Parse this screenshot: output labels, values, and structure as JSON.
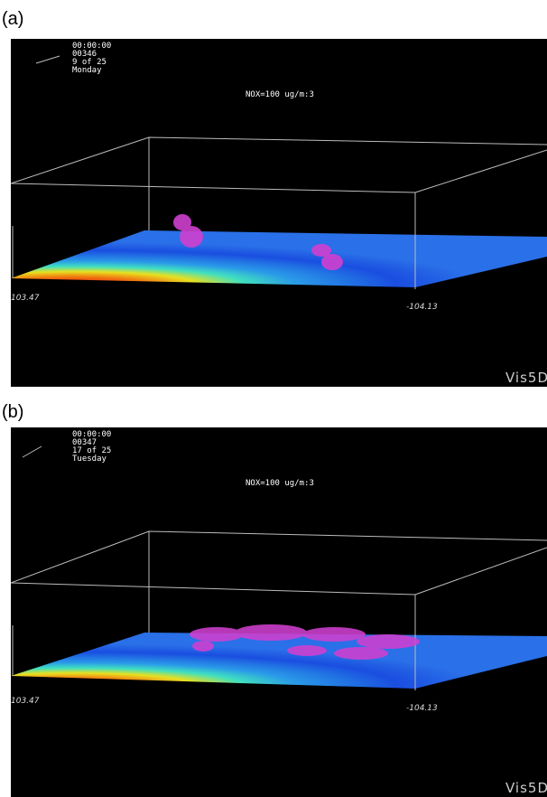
{
  "panels": [
    {
      "label": "(a)",
      "time": "00:00:00",
      "date": "00346",
      "step": "9 of 25",
      "day": "Monday",
      "variable": "NOX=100 ug/m:3",
      "lon_left": "103.47",
      "lon_right": "-104.13",
      "logo": "Vis5D"
    },
    {
      "label": "(b)",
      "time": "00:00:00",
      "date": "00347",
      "step": "17 of 25",
      "day": "Tuesday",
      "variable": "NOX=100 ug/m:3",
      "lon_left": "103.47",
      "lon_right": "-104.13",
      "logo": "Vis5D"
    }
  ]
}
